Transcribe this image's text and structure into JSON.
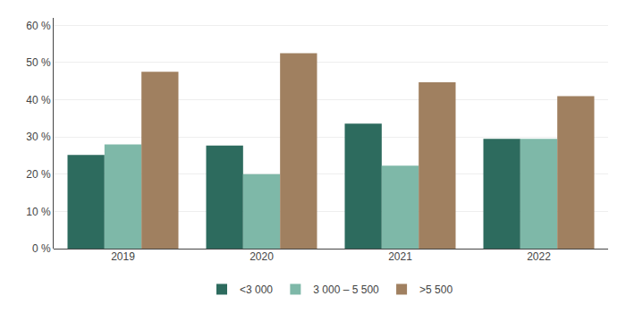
{
  "chart_data": {
    "type": "bar",
    "categories": [
      "2019",
      "2020",
      "2021",
      "2022"
    ],
    "series": [
      {
        "name": "<3 000",
        "color": "#2d6b5e",
        "values": [
          25.2,
          27.7,
          33.6,
          29.5
        ]
      },
      {
        "name": "3 000 – 5 500",
        "color": "#7eb8a8",
        "values": [
          28.0,
          20.0,
          22.3,
          29.5
        ]
      },
      {
        "name": ">5 500",
        "color": "#a08060",
        "values": [
          47.5,
          52.5,
          44.7,
          41.0
        ]
      }
    ],
    "ylim": [
      0,
      62
    ],
    "yticks": [
      {
        "value": 0,
        "label": "0 %"
      },
      {
        "value": 10,
        "label": "10 %"
      },
      {
        "value": 20,
        "label": "20 %"
      },
      {
        "value": 30,
        "label": "30 %"
      },
      {
        "value": 40,
        "label": "40 %"
      },
      {
        "value": 50,
        "label": "50 %"
      },
      {
        "value": 60,
        "label": "60 %"
      }
    ],
    "grid": true,
    "legend": "bottom"
  }
}
